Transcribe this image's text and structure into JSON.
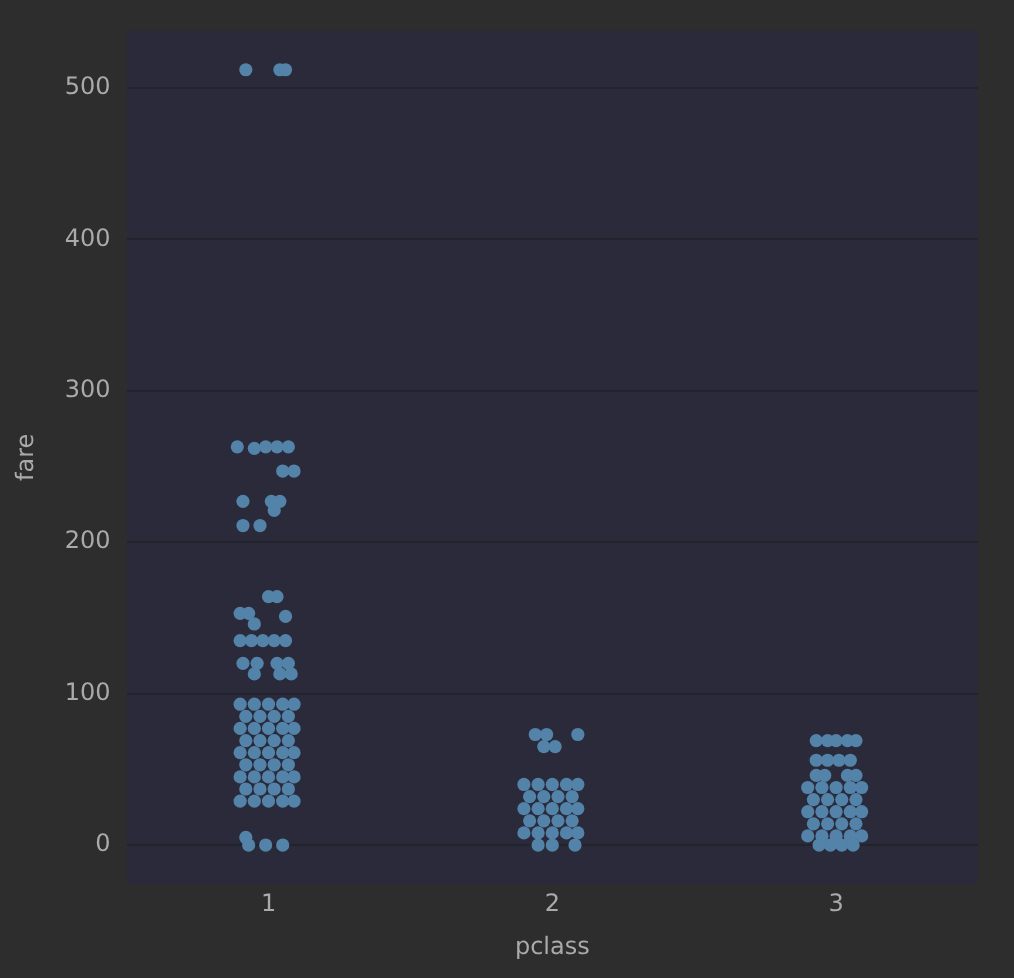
{
  "chart_data": {
    "type": "scatter",
    "xlabel": "pclass",
    "ylabel": "fare",
    "xlim": [
      0.5,
      3.5
    ],
    "xticks": [
      1,
      2,
      3
    ],
    "ylim": [
      -26,
      538
    ],
    "yticks": [
      0,
      100,
      200,
      300,
      400,
      500
    ],
    "grid": "y",
    "legend": false,
    "marker": "circle",
    "series": [
      {
        "color": "#5383a8",
        "x": [
          0.92,
          1.04,
          1.06,
          0.89,
          0.95,
          0.99,
          1.03,
          1.07,
          1.05,
          1.09,
          0.91,
          1.01,
          1.04,
          1.02,
          0.91,
          0.97,
          1.0,
          1.03,
          0.9,
          0.93,
          1.06,
          0.95,
          0.9,
          0.94,
          0.98,
          1.02,
          1.06,
          0.91,
          0.96,
          1.03,
          1.07,
          0.95,
          1.04,
          1.08,
          0.9,
          0.95,
          1.0,
          1.05,
          1.09,
          0.92,
          0.97,
          1.02,
          1.07,
          0.9,
          0.95,
          1.0,
          1.05,
          1.09,
          0.92,
          0.97,
          1.02,
          1.07,
          0.9,
          0.95,
          1.0,
          1.05,
          1.09,
          0.92,
          0.97,
          1.02,
          1.07,
          0.9,
          0.95,
          1.0,
          1.05,
          1.09,
          0.92,
          0.97,
          1.02,
          1.07,
          0.9,
          0.95,
          1.0,
          1.05,
          1.09,
          0.93,
          0.99,
          1.05,
          0.92,
          1.94,
          1.98,
          2.09,
          1.97,
          2.01,
          1.9,
          1.95,
          2.0,
          2.05,
          2.09,
          1.92,
          1.97,
          2.02,
          2.07,
          1.9,
          1.95,
          2.0,
          2.05,
          2.09,
          1.92,
          1.97,
          2.02,
          2.07,
          1.9,
          1.95,
          2.0,
          2.05,
          2.09,
          1.95,
          2.0,
          2.08,
          2.93,
          2.97,
          3.0,
          3.04,
          3.07,
          2.93,
          2.97,
          3.01,
          3.05,
          2.93,
          2.96,
          3.04,
          3.07,
          2.9,
          2.95,
          3.0,
          3.05,
          3.09,
          2.92,
          2.97,
          3.02,
          3.07,
          2.9,
          2.95,
          3.0,
          3.05,
          3.09,
          2.92,
          2.97,
          3.02,
          3.07,
          2.9,
          2.95,
          3.0,
          3.05,
          3.09,
          2.94,
          2.98,
          3.02,
          3.06
        ],
        "values": [
          512,
          512,
          512,
          263,
          262,
          263,
          263,
          263,
          247,
          247,
          227,
          227,
          227,
          221,
          211,
          211,
          164,
          164,
          153,
          153,
          151,
          146,
          135,
          135,
          135,
          135,
          135,
          120,
          120,
          120,
          120,
          113,
          113,
          113,
          93,
          93,
          93,
          93,
          93,
          85,
          85,
          85,
          85,
          77,
          77,
          77,
          77,
          77,
          69,
          69,
          69,
          69,
          61,
          61,
          61,
          61,
          61,
          53,
          53,
          53,
          53,
          45,
          45,
          45,
          45,
          45,
          37,
          37,
          37,
          37,
          29,
          29,
          29,
          29,
          29,
          0,
          0,
          0,
          5,
          73,
          73,
          73,
          65,
          65,
          40,
          40,
          40,
          40,
          40,
          32,
          32,
          32,
          32,
          24,
          24,
          24,
          24,
          24,
          16,
          16,
          16,
          16,
          8,
          8,
          8,
          8,
          8,
          0,
          0,
          0,
          69,
          69,
          69,
          69,
          69,
          56,
          56,
          56,
          56,
          46,
          46,
          46,
          46,
          38,
          38,
          38,
          38,
          38,
          30,
          30,
          30,
          30,
          22,
          22,
          22,
          22,
          22,
          14,
          14,
          14,
          14,
          6,
          6,
          6,
          6,
          6,
          0,
          0,
          0,
          0
        ]
      }
    ]
  }
}
